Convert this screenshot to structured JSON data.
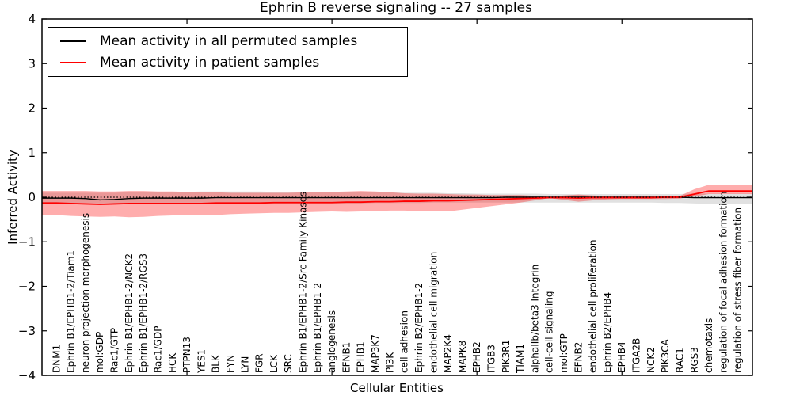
{
  "chart_data": {
    "type": "line",
    "title": "Ephrin B reverse signaling -- 27 samples",
    "xlabel": "Cellular Entities",
    "ylabel": "Inferred Activity",
    "ylim": [
      -4,
      4
    ],
    "yticks": [
      4,
      3,
      2,
      1,
      0,
      -1,
      -2,
      -3,
      -4
    ],
    "ytick_labels": [
      "4",
      "3",
      "2",
      "1",
      "0",
      "−1",
      "−2",
      "−3",
      "−4"
    ],
    "xtick_positions": [
      9,
      19,
      29,
      39
    ],
    "grid": false,
    "legend_position": "upper-left",
    "zero_line": {
      "y": 0,
      "style": "dotted",
      "color": "#000000"
    },
    "categories": [
      "DNM1",
      "Ephrin B1/EPHB1-2/Tiam1",
      "neuron projection morphogenesis",
      "mol:GDP",
      "Rac1/GTP",
      "Ephrin B1/EPHB1-2/NCK2",
      "Ephrin B1/EPHB1-2/RGS3",
      "Rac1/GDP",
      "HCK",
      "PTPN13",
      "YES1",
      "BLK",
      "FYN",
      "LYN",
      "FGR",
      "LCK",
      "SRC",
      "Ephrin B1/EPHB1-2/Src Family Kinases",
      "Ephrin B1/EPHB1-2",
      "angiogenesis",
      "EFNB1",
      "EPHB1",
      "MAP3K7",
      "PI3K",
      "cell adhesion",
      "Ephrin B2/EPHB1-2",
      "endothelial cell migration",
      "MAP2K4",
      "MAPK8",
      "EPHB2",
      "ITGB3",
      "PIK3R1",
      "TIAM1",
      "alphaIIb/beta3 Integrin",
      "cell-cell signaling",
      "mol:GTP",
      "EFNB2",
      "endothelial cell proliferation",
      "Ephrin B2/EPHB4",
      "EPHB4",
      "ITGA2B",
      "NCK2",
      "PIK3CA",
      "RAC1",
      "RGS3",
      "chemotaxis",
      "regulation of focal adhesion formation",
      "regulation of stress fiber formation"
    ],
    "series": [
      {
        "name": "Mean activity in all permuted samples",
        "color": "#000000",
        "line_width": 1.4,
        "band_color": "#aaaaaa",
        "band_opacity": 0.35,
        "values": [
          -0.02,
          -0.02,
          -0.03,
          -0.06,
          -0.05,
          -0.03,
          -0.02,
          -0.02,
          -0.02,
          -0.02,
          -0.02,
          -0.01,
          -0.01,
          -0.01,
          -0.01,
          -0.01,
          -0.01,
          -0.01,
          -0.01,
          -0.01,
          -0.01,
          -0.01,
          -0.01,
          -0.01,
          -0.01,
          -0.01,
          -0.01,
          -0.01,
          -0.01,
          -0.01,
          -0.01,
          0,
          0,
          0,
          0,
          0,
          0,
          0,
          0,
          0,
          0,
          0,
          0,
          0,
          -0.01,
          -0.01,
          -0.01,
          -0.01
        ],
        "band_upper": [
          0.1,
          0.1,
          0.1,
          0.1,
          0.1,
          0.11,
          0.11,
          0.12,
          0.12,
          0.12,
          0.13,
          0.13,
          0.13,
          0.13,
          0.13,
          0.12,
          0.12,
          0.12,
          0.12,
          0.12,
          0.12,
          0.12,
          0.11,
          0.11,
          0.1,
          0.1,
          0.1,
          0.09,
          0.09,
          0.08,
          0.08,
          0.08,
          0.08,
          0.08,
          0.07,
          0.07,
          0.07,
          0.07,
          0.07,
          0.07,
          0.07,
          0.07,
          0.07,
          0.07,
          0.08,
          0.08,
          0.08,
          0.08
        ],
        "band_lower": [
          -0.13,
          -0.13,
          -0.13,
          -0.14,
          -0.14,
          -0.14,
          -0.14,
          -0.15,
          -0.15,
          -0.15,
          -0.15,
          -0.15,
          -0.15,
          -0.15,
          -0.15,
          -0.15,
          -0.14,
          -0.14,
          -0.14,
          -0.14,
          -0.14,
          -0.14,
          -0.13,
          -0.13,
          -0.13,
          -0.13,
          -0.12,
          -0.12,
          -0.12,
          -0.12,
          -0.12,
          -0.12,
          -0.12,
          -0.12,
          -0.12,
          -0.12,
          -0.12,
          -0.12,
          -0.12,
          -0.12,
          -0.12,
          -0.12,
          -0.13,
          -0.13,
          -0.14,
          -0.15,
          -0.15,
          -0.15
        ]
      },
      {
        "name": "Mean activity in patient samples",
        "color": "#ff0000",
        "line_width": 1.8,
        "band_color": "#ff0000",
        "band_opacity": 0.32,
        "values": [
          -0.13,
          -0.14,
          -0.15,
          -0.16,
          -0.15,
          -0.14,
          -0.14,
          -0.14,
          -0.14,
          -0.14,
          -0.14,
          -0.13,
          -0.13,
          -0.13,
          -0.13,
          -0.12,
          -0.12,
          -0.12,
          -0.12,
          -0.12,
          -0.11,
          -0.11,
          -0.1,
          -0.1,
          -0.09,
          -0.09,
          -0.08,
          -0.08,
          -0.07,
          -0.06,
          -0.05,
          -0.04,
          -0.03,
          -0.02,
          -0.01,
          -0.01,
          -0.02,
          -0.01,
          -0.01,
          -0.01,
          -0.01,
          -0.01,
          0,
          0,
          0.07,
          0.14,
          0.14,
          0.14
        ],
        "band_upper": [
          0.14,
          0.14,
          0.14,
          0.13,
          0.13,
          0.14,
          0.14,
          0.13,
          0.13,
          0.12,
          0.11,
          0.11,
          0.1,
          0.1,
          0.1,
          0.1,
          0.1,
          0.11,
          0.12,
          0.12,
          0.13,
          0.14,
          0.13,
          0.11,
          0.09,
          0.08,
          0.08,
          0.07,
          0.06,
          0.06,
          0.05,
          0.05,
          0.05,
          0.03,
          0.01,
          0.04,
          0.06,
          0.04,
          0.03,
          0.03,
          0.03,
          0.03,
          0.03,
          0.03,
          0.18,
          0.28,
          0.28,
          0.28
        ],
        "band_lower": [
          -0.4,
          -0.42,
          -0.43,
          -0.44,
          -0.43,
          -0.45,
          -0.44,
          -0.42,
          -0.41,
          -0.4,
          -0.41,
          -0.4,
          -0.38,
          -0.37,
          -0.36,
          -0.35,
          -0.35,
          -0.34,
          -0.33,
          -0.32,
          -0.33,
          -0.32,
          -0.31,
          -0.3,
          -0.3,
          -0.31,
          -0.31,
          -0.32,
          -0.28,
          -0.24,
          -0.2,
          -0.16,
          -0.12,
          -0.07,
          -0.02,
          -0.06,
          -0.1,
          -0.07,
          -0.05,
          -0.04,
          -0.04,
          -0.04,
          -0.04,
          -0.03,
          0.02,
          0.07,
          0.07,
          0.07
        ]
      }
    ]
  }
}
